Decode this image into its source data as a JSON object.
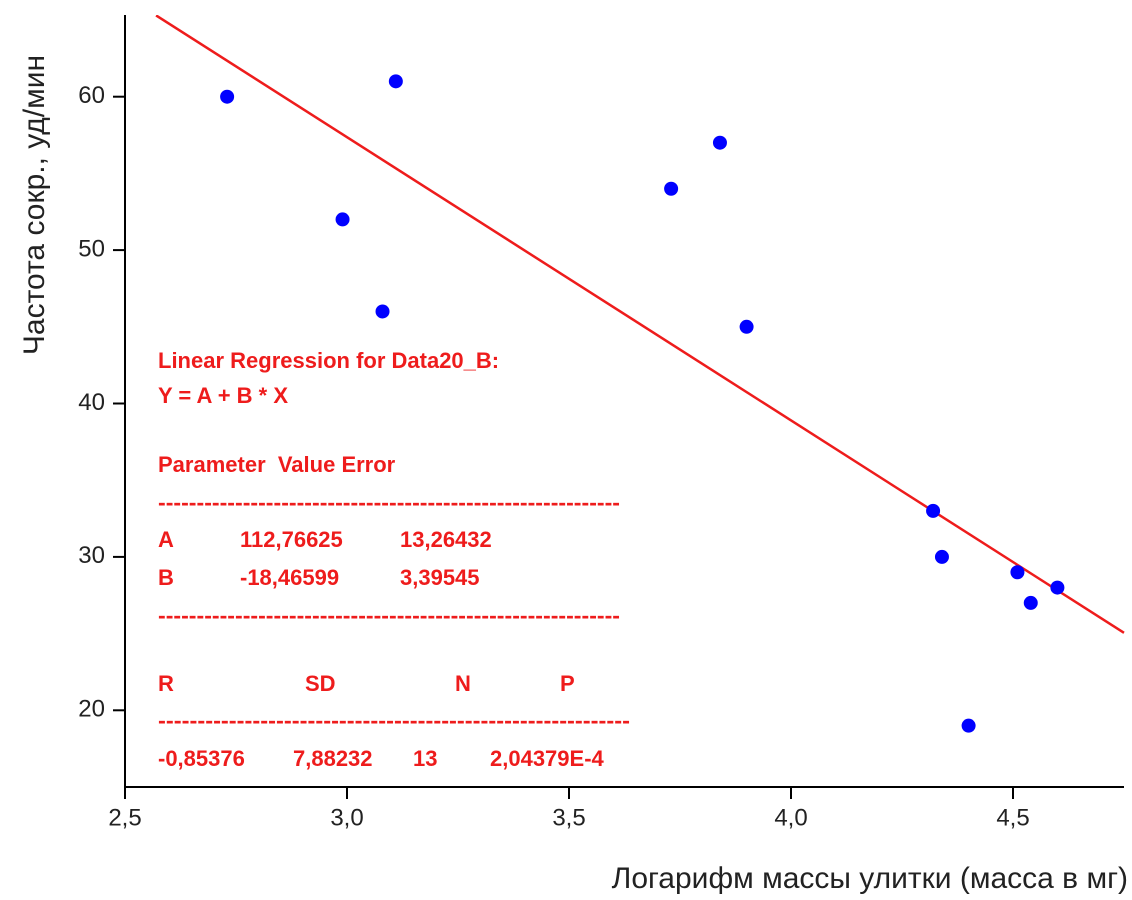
{
  "chart_data": {
    "type": "scatter",
    "xlabel": "Логарифм массы улитки (масса в мг)",
    "ylabel": "Частота сокр., уд/мин",
    "x": [
      2.73,
      2.99,
      3.08,
      3.11,
      3.73,
      3.84,
      3.9,
      4.32,
      4.34,
      4.4,
      4.51,
      4.54,
      4.6
    ],
    "values": [
      60,
      52,
      46,
      61,
      54,
      57,
      45,
      33,
      30,
      19,
      29,
      27,
      28
    ],
    "color": "#0000ff",
    "fit": {
      "x": [
        2.57,
        4.75
      ],
      "values": [
        65.3,
        25.05
      ],
      "color": "#ee1c1c"
    },
    "xlim": [
      2.5,
      4.75
    ],
    "ylim": [
      15,
      65
    ],
    "xticks": [
      {
        "value": 2.5,
        "label": "2,5"
      },
      {
        "value": 3.0,
        "label": "3,0"
      },
      {
        "value": 3.5,
        "label": "3,5"
      },
      {
        "value": 4.0,
        "label": "4,0"
      },
      {
        "value": 4.5,
        "label": "4,5"
      }
    ],
    "yticks": [
      20,
      30,
      40,
      50,
      60
    ],
    "grid": false,
    "annotation": {
      "color": "#ee1c1c",
      "lines": [
        [
          "Linear Regression for Data20_B:"
        ],
        [
          "Y = A + B * X"
        ],
        [
          "Parameter  Value Error"
        ],
        [
          "------------------------------------------------------------"
        ],
        [
          "A",
          "112,76625",
          "13,26432"
        ],
        [
          "B",
          "-18,46599",
          "3,39545"
        ],
        [
          "------------------------------------------------------------"
        ],
        [
          "R",
          "SD",
          "N",
          "P"
        ],
        [
          "------------------------------------------------------------"
        ],
        [
          "-0,85376",
          "7,88232",
          "13",
          "2,04379E-4"
        ]
      ]
    }
  }
}
